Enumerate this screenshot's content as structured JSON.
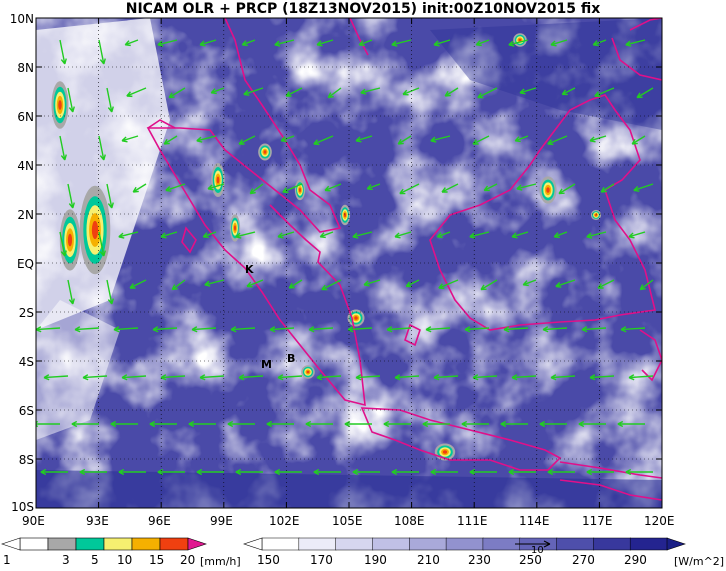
{
  "title": "NICAM OLR + PRCP (18Z13NOV2015) init:00Z10NOV2015 fix",
  "map": {
    "lat_labels": [
      "10N",
      "8N",
      "6N",
      "4N",
      "2N",
      "EQ",
      "2S",
      "4S",
      "6S",
      "8S",
      "10S"
    ],
    "lon_labels": [
      "90E",
      "93E",
      "96E",
      "99E",
      "102E",
      "105E",
      "108E",
      "111E",
      "114E",
      "117E",
      "120E"
    ],
    "markers": [
      {
        "label": "K"
      },
      {
        "label": "B"
      },
      {
        "label": "M"
      }
    ],
    "colors": {
      "coast": "#e0108a",
      "wind": "#22cc22",
      "olr_dark": "#1a1f86",
      "olr_light": "#ffffff"
    }
  },
  "precip_legend": {
    "ticks": [
      "1",
      "3",
      "5",
      "10",
      "15",
      "20"
    ],
    "unit": "[mm/h]",
    "colors": [
      "#ffffff",
      "#a8a8a8",
      "#00c89a",
      "#f6f070",
      "#f5b000",
      "#f04010",
      "#e01890"
    ]
  },
  "olr_legend": {
    "ticks": [
      "150",
      "170",
      "190",
      "210",
      "230",
      "250",
      "270",
      "290"
    ],
    "unit": "[W/m^2]",
    "ref_vector": "10",
    "colors": [
      "#ffffff",
      "#ececf8",
      "#d6d6ef",
      "#c0c0e6",
      "#a9a9da",
      "#9292cf",
      "#7c7cc4",
      "#6464b8",
      "#4e4fab",
      "#38389d",
      "#242490",
      "#1a1f86"
    ]
  }
}
